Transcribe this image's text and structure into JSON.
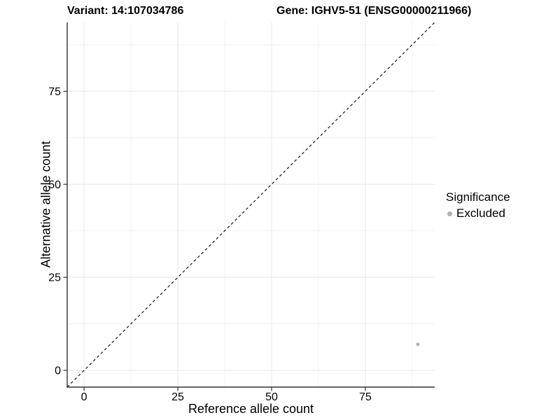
{
  "header": {
    "title_left": "Variant: 14:107034786",
    "title_right": "Gene: IGHV5-51 (ENSG00000211966)"
  },
  "chart_data": {
    "type": "scatter",
    "xlabel": "Reference allele count",
    "ylabel": "Alternative allele count",
    "xlim": [
      -4.5,
      93.5
    ],
    "ylim": [
      -4.5,
      93.5
    ],
    "xticks": [
      0,
      25,
      50,
      75
    ],
    "yticks": [
      0,
      25,
      50,
      75
    ],
    "minor_xticks": [
      12.5,
      37.5,
      62.5,
      87.5
    ],
    "minor_yticks": [
      12.5,
      37.5,
      62.5,
      87.5
    ],
    "grid": true,
    "reference_line": {
      "kind": "identity",
      "slope": 1,
      "intercept": 0,
      "style": "dashed",
      "color": "#000000"
    },
    "series": [
      {
        "name": "Excluded",
        "color": "#b5b5b5",
        "point_radius": 2.6,
        "points": [
          [
            89,
            7
          ]
        ]
      }
    ],
    "legend": {
      "title": "Significance",
      "position": "right",
      "items": [
        {
          "label": "Excluded",
          "color": "#b0b0b0"
        }
      ]
    },
    "colors": {
      "axis_line": "#333333",
      "tick_mark": "#333333",
      "grid_major": "#e8e8e8",
      "grid_minor": "#f1f1f1",
      "tick_text": "#000000"
    }
  }
}
